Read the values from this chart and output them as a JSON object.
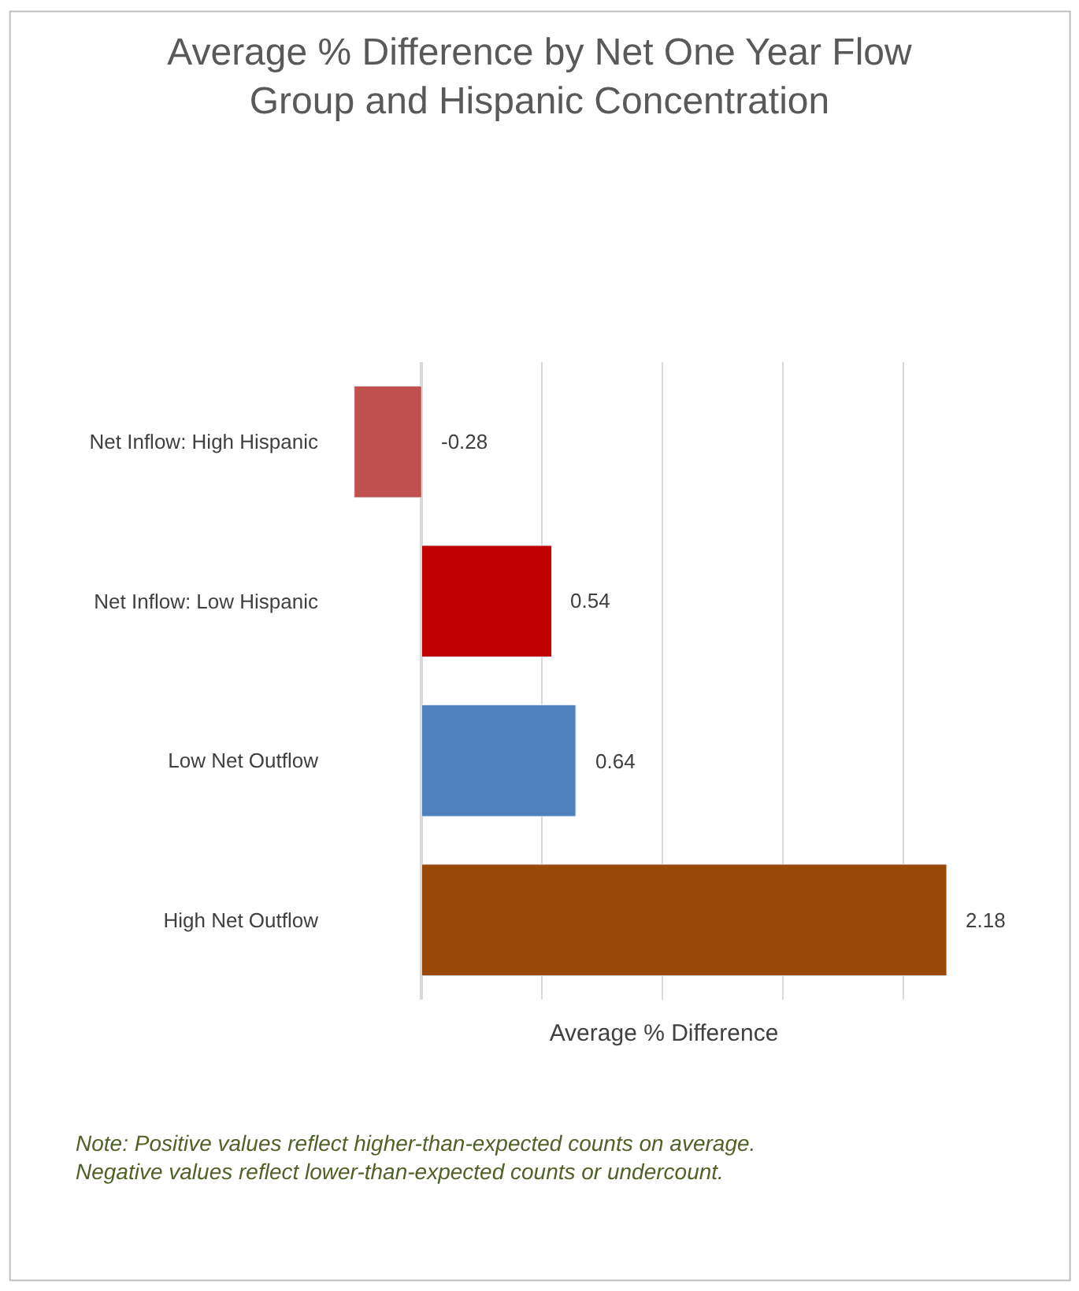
{
  "chart_data": {
    "type": "bar",
    "orientation": "horizontal",
    "title": "Average % Difference by Net One Year Flow Group and Hispanic Concentration",
    "xlabel": "Average % Difference",
    "categories": [
      "Net Inflow: High Hispanic",
      "Net Inflow: Low Hispanic",
      "Low Net Outflow",
      "High Net Outflow"
    ],
    "values": [
      -0.28,
      0.54,
      0.64,
      2.18
    ],
    "colors": [
      "#c0504d",
      "#c00000",
      "#4f81bd",
      "#984807"
    ],
    "data_labels": true,
    "grid": "x",
    "tick_labels": "y",
    "annotations": [
      "Note: Positive values reflect higher-than-expected counts on average.\nNegative values reflect lower-than-expected counts or undercount."
    ]
  }
}
